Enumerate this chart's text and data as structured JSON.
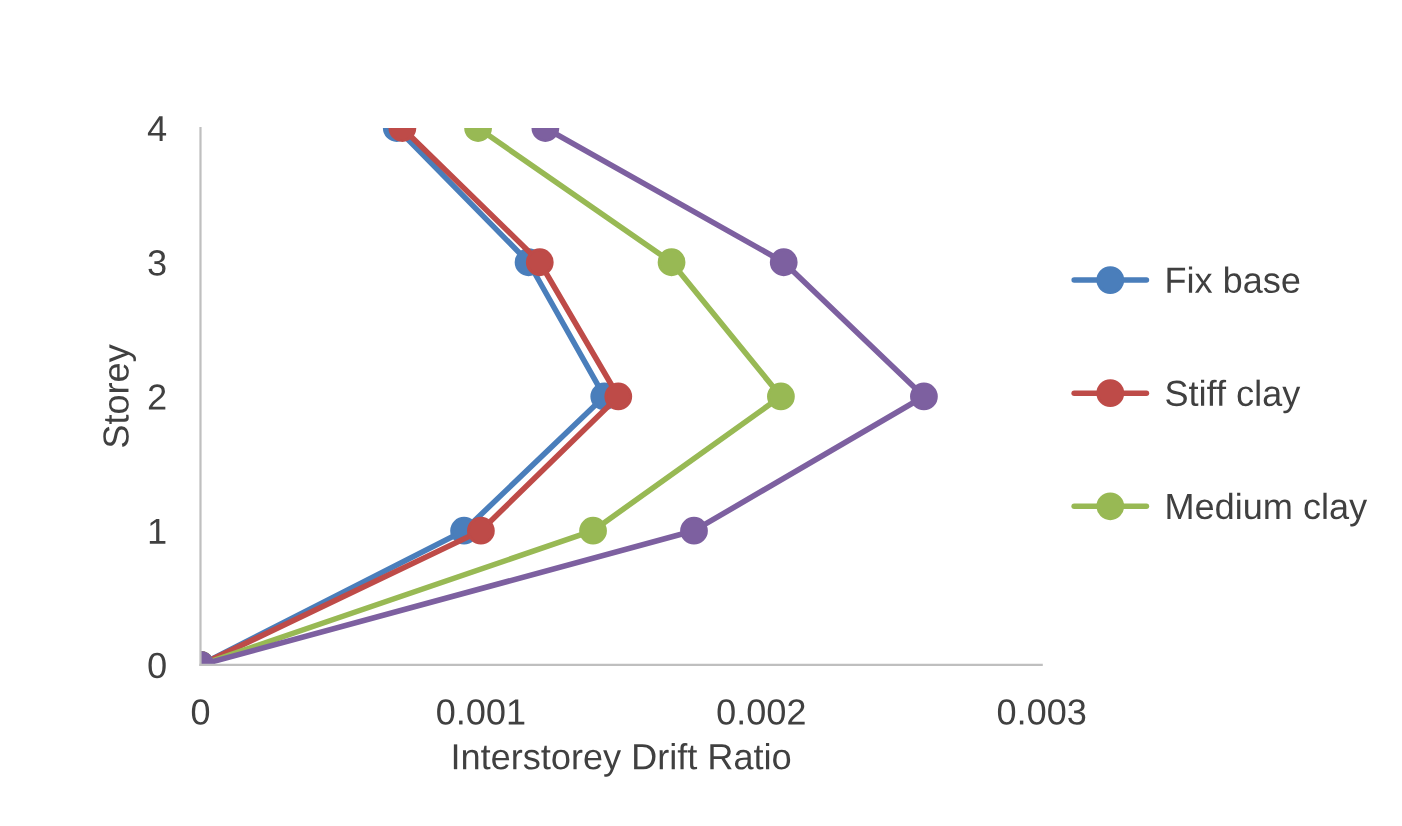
{
  "chart_data": {
    "type": "line",
    "xlabel": "Interstorey Drift Ratio",
    "ylabel": "Storey",
    "marker": "circle",
    "line_style": "solid",
    "grid": false,
    "legend": "right",
    "xlim": [
      0,
      0.003
    ],
    "xticks": [
      0,
      0.001,
      0.002,
      0.003
    ],
    "ylim": [
      0,
      4
    ],
    "yticks": [
      0,
      1,
      2,
      3,
      4
    ],
    "series": [
      {
        "name": "Fix base",
        "color": "#4a7ebb",
        "x": [
          0,
          0.00094,
          0.00144,
          0.00117,
          0.0007
        ],
        "values": [
          0,
          1,
          2,
          3,
          4
        ]
      },
      {
        "name": "Stiff clay",
        "color": "#be4b48",
        "x": [
          0,
          0.001,
          0.00149,
          0.00121,
          0.00072
        ],
        "values": [
          0,
          1,
          2,
          3,
          4
        ]
      },
      {
        "name": "Medium clay",
        "color": "#98b954",
        "x": [
          0,
          0.0014,
          0.00207,
          0.00168,
          0.00099
        ],
        "values": [
          0,
          1,
          2,
          3,
          4
        ]
      },
      {
        "color": "#7d60a0",
        "x": [
          0,
          0.00176,
          0.00258,
          0.00208,
          0.00123
        ],
        "values": [
          0,
          1,
          2,
          3,
          4
        ]
      }
    ]
  }
}
